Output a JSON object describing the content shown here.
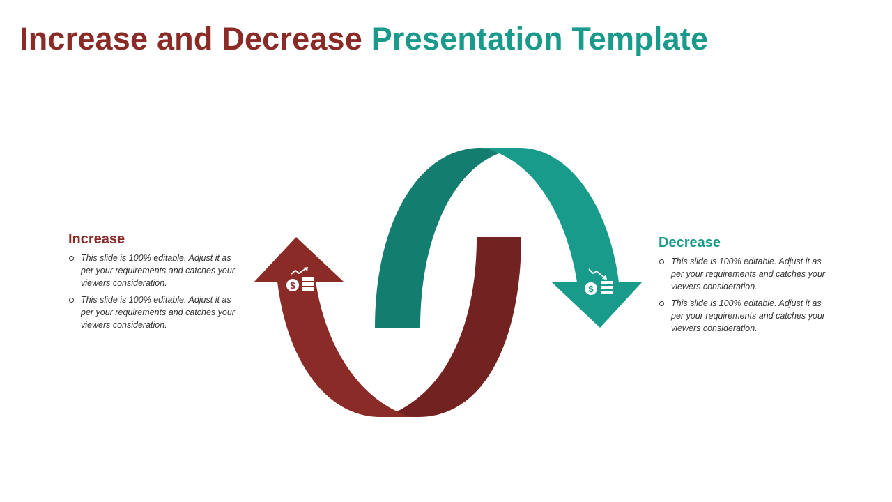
{
  "title": {
    "part1": "Increase and Decrease",
    "part2": "Presentation Template"
  },
  "increase": {
    "heading": "Increase",
    "bullets": [
      "This slide is 100%  editable. Adjust it as per your requirements and catches your viewers consideration.",
      "This slide is 100%  editable. Adjust it as per your requirements and catches your viewers consideration."
    ]
  },
  "decrease": {
    "heading": "Decrease",
    "bullets": [
      "This slide is 100%  editable. Adjust it as per your requirements and catches your viewers consideration.",
      "This slide is 100%  editable. Adjust it as per your requirements and catches your viewers consideration."
    ]
  },
  "colors": {
    "red": "#8b2b27",
    "red_dark": "#722321",
    "teal": "#189b8a",
    "teal_dark": "#137d6f"
  },
  "icons": {
    "up": "money-increase-icon",
    "down": "money-decrease-icon"
  }
}
